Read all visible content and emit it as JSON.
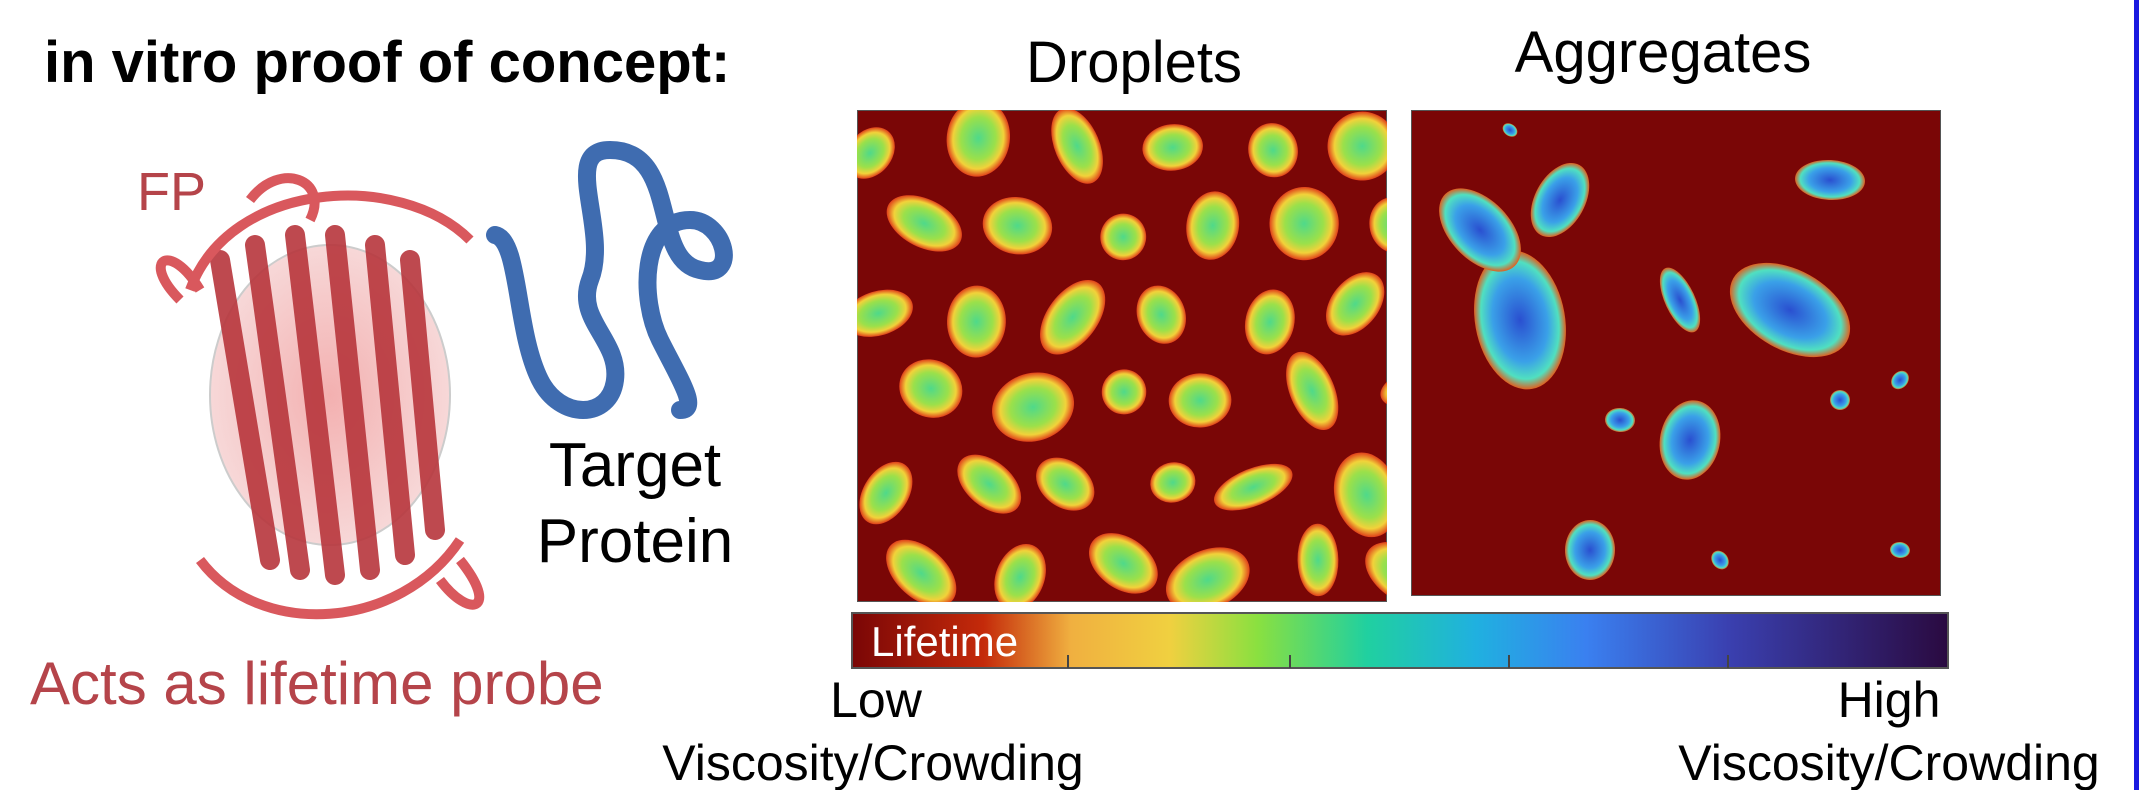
{
  "header": {
    "title": "in vitro proof of concept:"
  },
  "diagram": {
    "fp_label": "FP",
    "target_label": [
      "Target",
      "Protein"
    ],
    "caption": "Acts as lifetime probe"
  },
  "images": [
    {
      "title": "Droplets"
    },
    {
      "title": "Aggregates"
    }
  ],
  "colorbar": {
    "label": "Lifetime",
    "low": {
      "label": "Low",
      "caption": "Viscosity/Crowding"
    },
    "high": {
      "label": "High",
      "caption": "Viscosity/Crowding"
    }
  }
}
